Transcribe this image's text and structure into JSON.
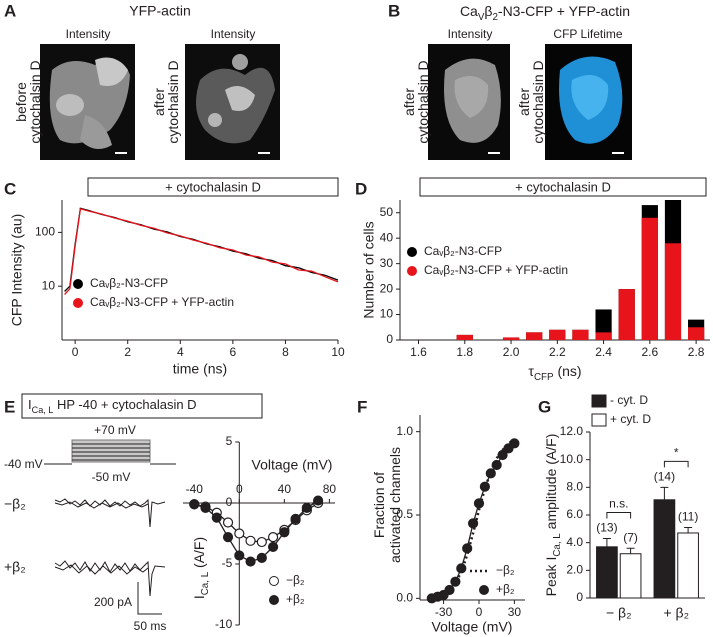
{
  "panel_a": {
    "letter": "A",
    "title": "YFP-actin",
    "images": [
      {
        "header": "Intensity",
        "side": [
          "before",
          "cytochalsin D"
        ]
      },
      {
        "header": "Intensity",
        "side": [
          "after",
          "cytochalsin D"
        ]
      }
    ]
  },
  "panel_b": {
    "letter": "B",
    "title": [
      "Ca",
      "V",
      "β",
      "2",
      "-N3-CFP + YFP-actin"
    ],
    "images": [
      {
        "header": "Intensity",
        "side": [
          "after",
          "cytochalsin D"
        ]
      },
      {
        "header": "CFP Lifetime",
        "side": [
          "after",
          "cytochalsin D"
        ]
      }
    ]
  },
  "panel_e": {
    "letter": "E",
    "header": [
      "I",
      "Ca, L",
      "  HP -40 + cytochalasin D"
    ],
    "protocol": [
      "+70 mV",
      "-40 mV",
      "-50 mV"
    ],
    "traces": [
      "−β₂",
      "+β₂"
    ],
    "scale": [
      "200 pA",
      "50 ms"
    ]
  },
  "chart_data": [
    {
      "type": "line",
      "panel": "C",
      "header": "+ cytochalasin D",
      "log_y": true,
      "xlabel": "time (ns)",
      "ylabel": "CFP Intensity (au)",
      "x": [
        -0.4,
        -0.2,
        0,
        0.2,
        0.5,
        1,
        1.5,
        2,
        2.5,
        3,
        3.5,
        4,
        4.5,
        5,
        5.5,
        6,
        6.5,
        7,
        7.5,
        8,
        8.5,
        9,
        9.5,
        10
      ],
      "series": [
        {
          "name": "Caᵥβ₂-N3-CFP",
          "color": "#000000",
          "values": [
            8,
            10,
            60,
            280,
            256,
            216,
            189,
            158,
            139,
            115,
            102,
            84,
            74,
            61,
            54,
            45,
            40,
            33,
            30,
            24,
            22,
            18,
            16,
            13
          ]
        },
        {
          "name": "Caᵥβ₂-N3-CFP + YFP-actin",
          "color": "#e8141b",
          "values": [
            7,
            9,
            55,
            275,
            250,
            220,
            185,
            162,
            135,
            119,
            98,
            86,
            72,
            63,
            52,
            47,
            38,
            35,
            28,
            26,
            20,
            19,
            15,
            12
          ]
        }
      ],
      "xlim": [
        -0.5,
        10
      ],
      "ylim": [
        1,
        400
      ],
      "xticks": [
        0,
        2,
        4,
        6,
        8,
        10
      ],
      "yticks": [
        10,
        100
      ],
      "legend": "lower-left"
    },
    {
      "type": "histogram",
      "panel": "D",
      "header": "+ cytochalasin D",
      "xlabel": [
        "τ",
        "CFP",
        " (ns)"
      ],
      "ylabel": "Number of cells",
      "bins": [
        1.75,
        1.85,
        1.95,
        2.05,
        2.15,
        2.25,
        2.35,
        2.45,
        2.55,
        2.65,
        2.75,
        2.85
      ],
      "series": [
        {
          "name": "Caᵥβ₂-N3-CFP",
          "color": "#000000",
          "values": [
            2,
            0,
            1,
            3,
            4,
            4,
            12,
            20,
            53,
            55,
            8
          ]
        },
        {
          "name": "Caᵥβ₂-N3-CFP + YFP-actin",
          "color": "#e8141b",
          "values": [
            2,
            0,
            1,
            3,
            4,
            4,
            3,
            20,
            48,
            38,
            5
          ]
        }
      ],
      "xlim": [
        1.52,
        2.86
      ],
      "ylim": [
        0,
        55
      ],
      "xticks": [
        1.6,
        1.8,
        {
          "value": 2,
          "label": "2.0"
        },
        2.2,
        2.4,
        2.6,
        2.8
      ],
      "yticks": [
        0,
        10,
        20,
        30,
        40,
        50
      ],
      "legend": "upper-left"
    },
    {
      "type": "line",
      "axes_cross_zero": true,
      "xlabel": "Voltage (mV)",
      "ylabel": [
        "I",
        "Ca, L",
        " (A/F)"
      ],
      "x": [
        -40,
        -30,
        -20,
        -10,
        0,
        10,
        20,
        30,
        40,
        50,
        60,
        70
      ],
      "series": [
        {
          "name": "−β₂",
          "color": "#231f20",
          "marker": "open",
          "values": [
            -0.1,
            -0.3,
            -0.8,
            -1.6,
            -2.5,
            -3.1,
            -3.2,
            -2.8,
            -2.2,
            -1.4,
            -0.6,
            0
          ]
        },
        {
          "name": "+β₂",
          "color": "#231f20",
          "marker": "filled",
          "values": [
            -0.1,
            -0.4,
            -1.2,
            -2.8,
            -4.3,
            -4.8,
            -4.5,
            -3.6,
            -2.4,
            -1.3,
            -0.4,
            0.2
          ]
        }
      ],
      "xlim": [
        -50,
        85
      ],
      "ylim": [
        -10,
        5
      ],
      "xticks": [
        -40,
        0,
        40,
        80
      ],
      "yticks": [
        5,
        0,
        -5,
        -10
      ],
      "legend": "lower-right"
    },
    {
      "type": "line",
      "panel": "F",
      "xlabel": "Voltage (mV)",
      "ylabel": [
        "Fraction of",
        "activated channels"
      ],
      "x": [
        -40,
        -35,
        -30,
        -25,
        -20,
        -15,
        -10,
        -5,
        0,
        5,
        10,
        15,
        20,
        25,
        30
      ],
      "series": [
        {
          "name": "−β₂",
          "color": "#231f20",
          "dash": true,
          "values": [
            0.01,
            0.02,
            0.03,
            0.05,
            0.09,
            0.16,
            0.26,
            0.39,
            0.53,
            0.66,
            0.76,
            0.84,
            0.89,
            0.93,
            0.95
          ]
        },
        {
          "name": "+β₂",
          "color": "#231f20",
          "marker": "filled",
          "values": [
            0,
            0.01,
            0.02,
            0.05,
            0.1,
            0.18,
            0.3,
            0.45,
            0.57,
            0.67,
            0.75,
            0.8,
            0.86,
            0.9,
            0.93
          ]
        }
      ],
      "xlim": [
        -50,
        39
      ],
      "ylim": [
        -0.01,
        1.1
      ],
      "xticks": [
        -30,
        0,
        30
      ],
      "yticks": [
        {
          "value": 0,
          "label": "0.0"
        },
        0.5,
        {
          "value": 1,
          "label": "1.0"
        }
      ],
      "legend": "lower-right"
    },
    {
      "type": "bar",
      "panel": "G",
      "ylabel": [
        "Peak I",
        "Ca, L",
        " amplitude (A/F)"
      ],
      "categories": [
        "− β₂",
        "+ β₂"
      ],
      "series": [
        {
          "name": "- cyt. D",
          "color": "#231f20",
          "values": [
            3.7,
            7.1
          ],
          "errors": [
            0.6,
            0.9
          ],
          "n_labels": [
            "(13)",
            "(14)"
          ]
        },
        {
          "name": "+ cyt. D",
          "color": "#ffffff",
          "values": [
            3.2,
            4.7
          ],
          "errors": [
            0.4,
            0.4
          ],
          "n_labels": [
            "(7)",
            "(11)"
          ]
        }
      ],
      "annotations": [
        {
          "text": "n.s.",
          "category": 0
        },
        {
          "text": "*",
          "category": 1
        }
      ],
      "ylim": [
        0,
        12
      ],
      "yticks": [
        0,
        {
          "value": 2,
          "label": "2.0"
        },
        {
          "value": 4,
          "label": "4.0"
        },
        {
          "value": 6,
          "label": "6.0"
        },
        {
          "value": 8,
          "label": "8.0"
        },
        {
          "value": 10,
          "label": "10.0"
        },
        {
          "value": 12,
          "label": "12.0"
        }
      ],
      "legend": "upper-left"
    }
  ]
}
